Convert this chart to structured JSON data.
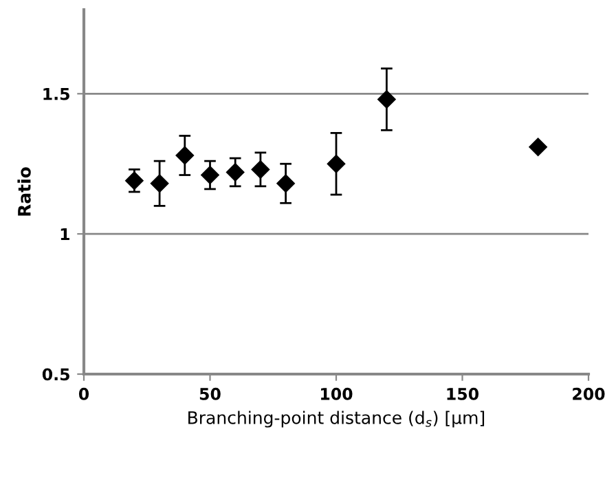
{
  "chart_data": {
    "type": "scatter",
    "xlabel": "Branching-point distance (d$_{s}$) [μm]",
    "ylabel": "Ratio",
    "x": [
      20,
      30,
      40,
      50,
      60,
      70,
      80,
      100,
      120,
      180
    ],
    "values": [
      1.19,
      1.18,
      1.28,
      1.21,
      1.22,
      1.23,
      1.18,
      1.25,
      1.48,
      1.31
    ],
    "errors": [
      0.04,
      0.08,
      0.07,
      0.05,
      0.05,
      0.06,
      0.07,
      0.11,
      0.11,
      null
    ],
    "color": "#000000",
    "marker": "diamond",
    "xlim": [
      0,
      200
    ],
    "xticks": [
      0,
      50,
      100,
      150,
      200
    ],
    "ylim": [
      0.5,
      1.8
    ],
    "yticks": [
      0.5,
      1,
      1.5
    ],
    "grid": "y",
    "legend": false
  }
}
